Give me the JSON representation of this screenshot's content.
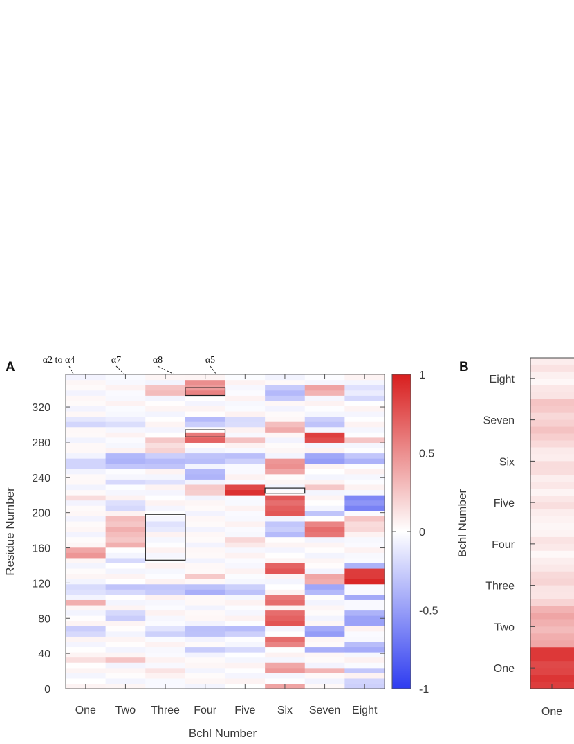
{
  "panel_a_label": "A",
  "panel_b_label": "B",
  "chart_data": [
    {
      "type": "heatmap",
      "panel": "A",
      "xlabel": "Bchl Number",
      "ylabel": "Residue Number",
      "x_categories": [
        "One",
        "Two",
        "Three",
        "Four",
        "Five",
        "Six",
        "Seven",
        "Eight"
      ],
      "y_ticks": [
        0,
        40,
        80,
        120,
        160,
        200,
        240,
        280,
        320
      ],
      "ylim": [
        0,
        357
      ],
      "colorbar": {
        "ticks": [
          1,
          0.5,
          0,
          -0.5,
          -1
        ],
        "range": [
          -1,
          1
        ],
        "colors": [
          "#2e3cf0",
          "#ffffff",
          "#d81e1e"
        ]
      },
      "annotations": [
        "α2 to α4",
        "α7",
        "α8",
        "α5"
      ],
      "column_bands": [
        {
          "bchl": "One",
          "bands": [
            [
              148,
              160,
              0.45
            ],
            [
              96,
              102,
              0.35
            ],
            [
              30,
              36,
              0.2
            ],
            [
              215,
              222,
              0.12
            ],
            [
              300,
              312,
              -0.15
            ],
            [
              250,
              262,
              -0.25
            ],
            [
              110,
              118,
              -0.2
            ],
            [
              60,
              70,
              -0.2
            ]
          ]
        },
        {
          "bchl": "Two",
          "bands": [
            [
              160,
              195,
              0.3
            ],
            [
              140,
              150,
              -0.25
            ],
            [
              250,
              265,
              -0.35
            ],
            [
              230,
              240,
              -0.25
            ],
            [
              110,
              118,
              -0.25
            ],
            [
              80,
              90,
              -0.2
            ],
            [
              30,
              36,
              0.25
            ],
            [
              300,
              312,
              -0.15
            ],
            [
              205,
              215,
              -0.15
            ]
          ]
        },
        {
          "bchl": "Three",
          "bands": [
            [
              336,
              346,
              0.25
            ],
            [
              270,
              286,
              0.2
            ],
            [
              250,
              265,
              -0.3
            ],
            [
              230,
              240,
              -0.15
            ],
            [
              110,
              118,
              -0.25
            ],
            [
              60,
              70,
              -0.2
            ],
            [
              20,
              26,
              0.15
            ],
            [
              180,
              195,
              -0.1
            ]
          ]
        },
        {
          "bchl": "Four",
          "bands": [
            [
              336,
              350,
              0.5
            ],
            [
              280,
              292,
              0.65
            ],
            [
              255,
              270,
              -0.35
            ],
            [
              240,
              250,
              -0.4
            ],
            [
              220,
              230,
              0.2
            ],
            [
              125,
              132,
              0.3
            ],
            [
              110,
              118,
              -0.35
            ],
            [
              60,
              70,
              -0.35
            ],
            [
              40,
              48,
              -0.3
            ],
            [
              300,
              312,
              -0.3
            ]
          ]
        },
        {
          "bchl": "Five",
          "bands": [
            [
              222,
              230,
              0.85
            ],
            [
              280,
              288,
              0.3
            ],
            [
              255,
              265,
              -0.3
            ],
            [
              160,
              170,
              0.12
            ],
            [
              110,
              118,
              -0.3
            ],
            [
              60,
              70,
              -0.3
            ],
            [
              40,
              48,
              -0.25
            ],
            [
              300,
              312,
              -0.15
            ]
          ]
        },
        {
          "bchl": "Six",
          "bands": [
            [
              325,
              345,
              -0.3
            ],
            [
              290,
              305,
              0.35
            ],
            [
              245,
              262,
              0.45
            ],
            [
              195,
              218,
              0.7
            ],
            [
              172,
              190,
              -0.3
            ],
            [
              130,
              145,
              0.75
            ],
            [
              95,
              110,
              0.65
            ],
            [
              70,
              92,
              0.7
            ],
            [
              45,
              60,
              0.6
            ],
            [
              18,
              30,
              0.4
            ],
            [
              0,
              8,
              0.35
            ]
          ]
        },
        {
          "bchl": "Seven",
          "bands": [
            [
              336,
              345,
              0.35
            ],
            [
              280,
              292,
              0.8
            ],
            [
              255,
              268,
              -0.45
            ],
            [
              225,
              235,
              0.25
            ],
            [
              175,
              190,
              0.6
            ],
            [
              195,
              205,
              -0.35
            ],
            [
              120,
              130,
              0.35
            ],
            [
              110,
              118,
              -0.4
            ],
            [
              60,
              70,
              -0.45
            ],
            [
              40,
              48,
              -0.35
            ],
            [
              20,
              26,
              0.3
            ],
            [
              300,
              312,
              -0.3
            ]
          ]
        },
        {
          "bchl": "Eight",
          "bands": [
            [
              330,
              345,
              -0.15
            ],
            [
              280,
              288,
              0.2
            ],
            [
              255,
              268,
              -0.35
            ],
            [
              200,
              218,
              -0.6
            ],
            [
              180,
              195,
              0.2
            ],
            [
              138,
              145,
              -0.45
            ],
            [
              118,
              135,
              0.9
            ],
            [
              100,
              110,
              -0.5
            ],
            [
              70,
              90,
              -0.45
            ],
            [
              40,
              55,
              -0.4
            ],
            [
              20,
              26,
              -0.25
            ],
            [
              0,
              10,
              -0.2
            ]
          ]
        }
      ],
      "boxes": [
        {
          "x": [
            2,
            3
          ],
          "y": [
            146,
            198
          ]
        },
        {
          "x": [
            3,
            4
          ],
          "y": [
            333,
            342
          ]
        },
        {
          "x": [
            3,
            4
          ],
          "y": [
            286,
            294
          ]
        },
        {
          "x": [
            5,
            6
          ],
          "y": [
            222,
            228
          ]
        }
      ]
    },
    {
      "type": "heatmap",
      "panel": "B",
      "ylabel": "Bchl Number",
      "y_categories": [
        "Eight",
        "Seven",
        "Six",
        "Five",
        "Four",
        "Three",
        "Two",
        "One"
      ],
      "x_categories": [
        "One"
      ],
      "values": [
        0.08,
        0.22,
        0.12,
        0.1,
        0.08,
        0.15,
        0.35,
        0.85
      ]
    }
  ]
}
